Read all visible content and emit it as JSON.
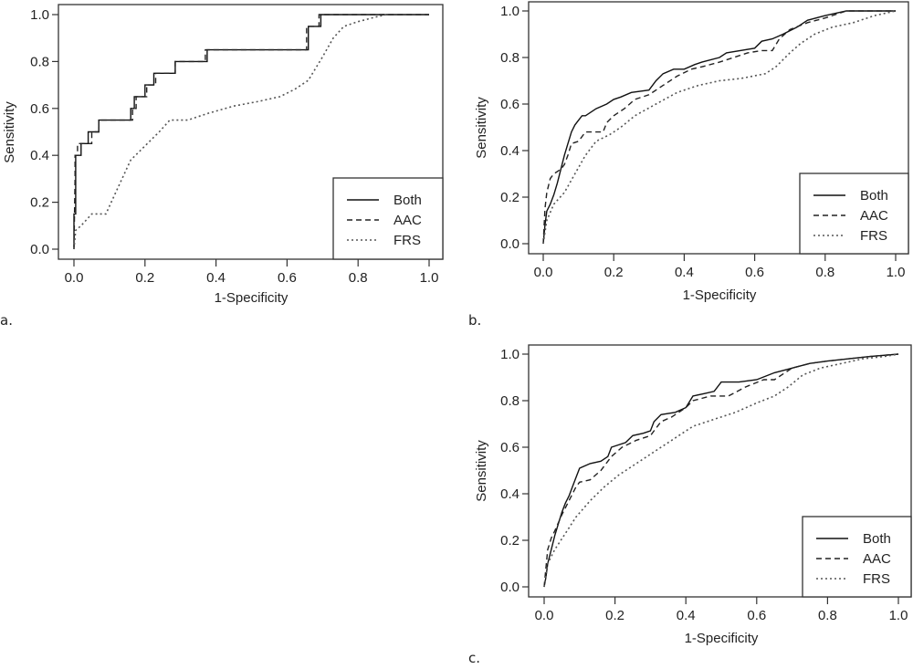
{
  "chart_data": [
    {
      "panel": "a",
      "type": "line",
      "panel_label": "a.",
      "title": "",
      "xlabel": "1-Specificity",
      "ylabel": "Sensitivity",
      "xlim": [
        0,
        1
      ],
      "ylim": [
        0,
        1
      ],
      "xticks": [
        "0.0",
        "0.2",
        "0.4",
        "0.6",
        "0.8",
        "1.0"
      ],
      "yticks": [
        "0.0",
        "0.2",
        "0.4",
        "0.6",
        "0.8",
        "1.0"
      ],
      "grid": false,
      "legend": {
        "position": "bottom-right",
        "entries": [
          "Both",
          "AAC",
          "FRS"
        ]
      },
      "series": [
        {
          "name": "Both",
          "style": "solid",
          "x": [
            0,
            0,
            0.005,
            0.005,
            0.02,
            0.02,
            0.04,
            0.04,
            0.07,
            0.07,
            0.16,
            0.16,
            0.17,
            0.17,
            0.2,
            0.2,
            0.225,
            0.225,
            0.285,
            0.285,
            0.375,
            0.375,
            0.66,
            0.66,
            0.695,
            0.695,
            1.0
          ],
          "y": [
            0,
            0.15,
            0.15,
            0.4,
            0.4,
            0.45,
            0.45,
            0.5,
            0.5,
            0.55,
            0.55,
            0.6,
            0.6,
            0.65,
            0.65,
            0.7,
            0.7,
            0.75,
            0.75,
            0.8,
            0.8,
            0.85,
            0.85,
            0.95,
            0.95,
            1.0,
            1.0
          ]
        },
        {
          "name": "AAC",
          "style": "dashed",
          "x": [
            0,
            0.003,
            0.003,
            0.01,
            0.01,
            0.025,
            0.025,
            0.05,
            0.05,
            0.07,
            0.07,
            0.165,
            0.165,
            0.175,
            0.175,
            0.205,
            0.205,
            0.23,
            0.23,
            0.285,
            0.285,
            0.37,
            0.37,
            0.655,
            0.655,
            0.69,
            0.69,
            1.0
          ],
          "y": [
            0,
            0.3,
            0.4,
            0.4,
            0.45,
            0.45,
            0.45,
            0.45,
            0.5,
            0.5,
            0.55,
            0.55,
            0.6,
            0.6,
            0.65,
            0.65,
            0.7,
            0.7,
            0.75,
            0.75,
            0.8,
            0.8,
            0.85,
            0.85,
            0.95,
            0.95,
            1.0,
            1.0
          ]
        },
        {
          "name": "FRS",
          "style": "dotted",
          "x": [
            0,
            0.005,
            0.02,
            0.05,
            0.09,
            0.12,
            0.16,
            0.2,
            0.24,
            0.27,
            0.32,
            0.38,
            0.45,
            0.52,
            0.58,
            0.62,
            0.66,
            0.7,
            0.73,
            0.76,
            0.8,
            0.85,
            0.88
          ],
          "y": [
            0,
            0.08,
            0.1,
            0.15,
            0.15,
            0.25,
            0.38,
            0.44,
            0.5,
            0.55,
            0.55,
            0.58,
            0.61,
            0.63,
            0.65,
            0.68,
            0.72,
            0.82,
            0.9,
            0.95,
            0.97,
            0.99,
            1.0
          ]
        }
      ]
    },
    {
      "panel": "b",
      "type": "line",
      "panel_label": "b.",
      "title": "",
      "xlabel": "1-Specificity",
      "ylabel": "Sensitivity",
      "xlim": [
        0,
        1
      ],
      "ylim": [
        0,
        1
      ],
      "xticks": [
        "0.0",
        "0.2",
        "0.4",
        "0.6",
        "0.8",
        "1.0"
      ],
      "yticks": [
        "0.0",
        "0.2",
        "0.4",
        "0.6",
        "0.8",
        "1.0"
      ],
      "grid": false,
      "legend": {
        "position": "bottom-right",
        "entries": [
          "Both",
          "AAC",
          "FRS"
        ]
      },
      "series": [
        {
          "name": "Both",
          "style": "solid",
          "x": [
            0,
            0.005,
            0.01,
            0.02,
            0.03,
            0.04,
            0.05,
            0.06,
            0.07,
            0.08,
            0.09,
            0.1,
            0.11,
            0.12,
            0.15,
            0.18,
            0.2,
            0.22,
            0.25,
            0.3,
            0.32,
            0.34,
            0.37,
            0.4,
            0.43,
            0.45,
            0.5,
            0.52,
            0.6,
            0.62,
            0.65,
            0.68,
            0.72,
            0.75,
            0.8,
            0.86,
            1.0
          ],
          "y": [
            0,
            0.08,
            0.14,
            0.17,
            0.21,
            0.26,
            0.32,
            0.38,
            0.43,
            0.48,
            0.51,
            0.53,
            0.55,
            0.55,
            0.58,
            0.6,
            0.62,
            0.63,
            0.65,
            0.66,
            0.7,
            0.73,
            0.75,
            0.75,
            0.77,
            0.78,
            0.8,
            0.82,
            0.84,
            0.87,
            0.88,
            0.9,
            0.93,
            0.96,
            0.98,
            1.0,
            1.0
          ]
        },
        {
          "name": "AAC",
          "style": "dashed",
          "x": [
            0,
            0.005,
            0.01,
            0.02,
            0.03,
            0.05,
            0.06,
            0.07,
            0.08,
            0.1,
            0.12,
            0.17,
            0.18,
            0.2,
            0.23,
            0.26,
            0.3,
            0.34,
            0.38,
            0.42,
            0.45,
            0.5,
            0.54,
            0.58,
            0.62,
            0.65,
            0.67,
            0.7,
            0.75,
            0.8,
            0.86,
            1.0
          ],
          "y": [
            0,
            0.15,
            0.22,
            0.28,
            0.3,
            0.32,
            0.34,
            0.38,
            0.43,
            0.44,
            0.48,
            0.48,
            0.52,
            0.55,
            0.58,
            0.62,
            0.64,
            0.68,
            0.72,
            0.75,
            0.76,
            0.78,
            0.8,
            0.82,
            0.83,
            0.83,
            0.88,
            0.92,
            0.95,
            0.97,
            1.0,
            1.0
          ]
        },
        {
          "name": "FRS",
          "style": "dotted",
          "x": [
            0,
            0.01,
            0.03,
            0.06,
            0.09,
            0.12,
            0.15,
            0.19,
            0.22,
            0.26,
            0.32,
            0.38,
            0.44,
            0.5,
            0.56,
            0.63,
            0.66,
            0.7,
            0.73,
            0.77,
            0.82,
            0.88,
            0.94,
            1.0
          ],
          "y": [
            0,
            0.1,
            0.17,
            0.22,
            0.3,
            0.38,
            0.44,
            0.47,
            0.5,
            0.55,
            0.6,
            0.65,
            0.68,
            0.7,
            0.71,
            0.73,
            0.76,
            0.82,
            0.86,
            0.9,
            0.93,
            0.95,
            0.98,
            1.0
          ]
        }
      ]
    },
    {
      "panel": "c",
      "type": "line",
      "panel_label": "c.",
      "title": "",
      "xlabel": "1-Specificity",
      "ylabel": "Sensitivity",
      "xlim": [
        0,
        1
      ],
      "ylim": [
        0,
        1
      ],
      "xticks": [
        "0.0",
        "0.2",
        "0.4",
        "0.6",
        "0.8",
        "1.0"
      ],
      "yticks": [
        "0.0",
        "0.2",
        "0.4",
        "0.6",
        "0.8",
        "1.0"
      ],
      "grid": false,
      "legend": {
        "position": "bottom-right",
        "entries": [
          "Both",
          "AAC",
          "FRS"
        ]
      },
      "series": [
        {
          "name": "Both",
          "style": "solid",
          "x": [
            0,
            0.005,
            0.01,
            0.02,
            0.03,
            0.04,
            0.05,
            0.06,
            0.07,
            0.08,
            0.09,
            0.1,
            0.13,
            0.16,
            0.18,
            0.19,
            0.23,
            0.25,
            0.28,
            0.3,
            0.31,
            0.33,
            0.37,
            0.4,
            0.42,
            0.45,
            0.48,
            0.5,
            0.55,
            0.6,
            0.65,
            0.7,
            0.75,
            0.8,
            0.86,
            0.92,
            1.0
          ],
          "y": [
            0,
            0.04,
            0.1,
            0.16,
            0.22,
            0.27,
            0.32,
            0.36,
            0.39,
            0.43,
            0.47,
            0.51,
            0.53,
            0.54,
            0.56,
            0.6,
            0.62,
            0.65,
            0.66,
            0.67,
            0.71,
            0.74,
            0.75,
            0.77,
            0.82,
            0.83,
            0.84,
            0.88,
            0.88,
            0.89,
            0.92,
            0.94,
            0.96,
            0.97,
            0.98,
            0.99,
            1.0
          ]
        },
        {
          "name": "AAC",
          "style": "dashed",
          "x": [
            0,
            0.005,
            0.01,
            0.02,
            0.03,
            0.05,
            0.07,
            0.09,
            0.1,
            0.13,
            0.16,
            0.19,
            0.22,
            0.26,
            0.3,
            0.33,
            0.36,
            0.4,
            0.42,
            0.47,
            0.52,
            0.57,
            0.62,
            0.65,
            0.7,
            0.75,
            0.8,
            0.86,
            0.92,
            1.0
          ],
          "y": [
            0,
            0.08,
            0.16,
            0.21,
            0.24,
            0.31,
            0.37,
            0.43,
            0.45,
            0.46,
            0.5,
            0.56,
            0.6,
            0.63,
            0.65,
            0.71,
            0.73,
            0.77,
            0.8,
            0.82,
            0.82,
            0.86,
            0.89,
            0.89,
            0.94,
            0.96,
            0.97,
            0.98,
            0.99,
            1.0
          ]
        },
        {
          "name": "FRS",
          "style": "dotted",
          "x": [
            0,
            0.01,
            0.03,
            0.06,
            0.09,
            0.13,
            0.17,
            0.21,
            0.26,
            0.31,
            0.36,
            0.42,
            0.48,
            0.54,
            0.6,
            0.65,
            0.69,
            0.73,
            0.78,
            0.84,
            0.9,
            0.96,
            1.0
          ],
          "y": [
            0,
            0.1,
            0.16,
            0.23,
            0.3,
            0.37,
            0.43,
            0.48,
            0.53,
            0.58,
            0.63,
            0.69,
            0.72,
            0.75,
            0.79,
            0.82,
            0.86,
            0.91,
            0.94,
            0.96,
            0.98,
            0.99,
            1.0
          ]
        }
      ]
    }
  ]
}
